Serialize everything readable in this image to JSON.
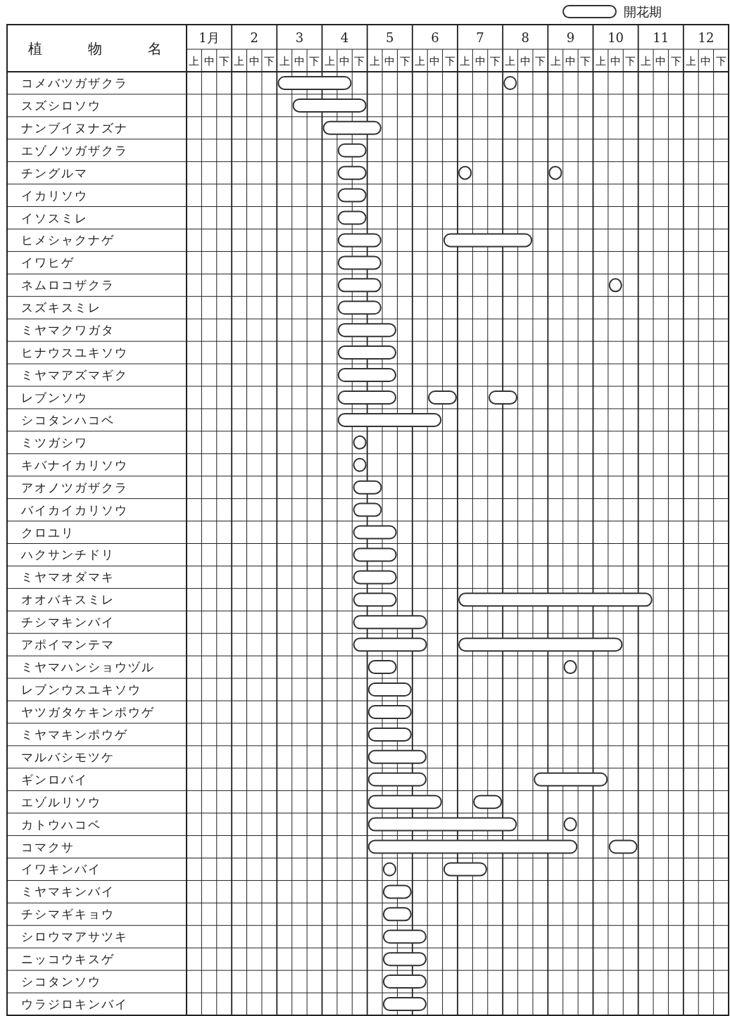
{
  "chart_data": {
    "type": "bar",
    "orientation": "horizontal",
    "ylabel": "植物名",
    "legend": "top right",
    "grid": true,
    "categories": [
      "コメバツガザクラ",
      "スズシロソウ",
      "ナンブイヌナズナ",
      "エゾノツガザクラ",
      "チングルマ",
      "イカリソウ",
      "イソスミレ",
      "ヒメシャクナゲ",
      "イワヒゲ",
      "ネムロコザクラ",
      "スズキスミレ",
      "ミヤマクワガタ",
      "ヒナウスユキソウ",
      "ミヤマアズマギク",
      "レブンソウ",
      "シコタンハコベ",
      "ミツガシワ",
      "キバナイカリソウ",
      "アオノツガザクラ",
      "バイカイカリソウ",
      "クロユリ",
      "ハクサンチドリ",
      "ミヤマオダマキ",
      "オオバキスミレ",
      "チシマキンバイ",
      "アポイマンテマ",
      "ミヤマハンショウヅル",
      "レブンウスユキソウ",
      "ヤツガタケキンポウゲ",
      "ミヤマキンポウゲ",
      "マルバシモツケ",
      "ギンロバイ",
      "エゾルリソウ",
      "カトウハコベ",
      "コマクサ",
      "イワキンバイ",
      "ミヤマキンバイ",
      "チシマギキョウ",
      "シロウマアサツキ",
      "ニッコウキスゲ",
      "シコタンソウ",
      "ウラジロキンバイ"
    ],
    "xlim": [
      0.5,
      12.5
    ],
    "xticks": [
      {
        "value": 1,
        "label": "1月"
      },
      2,
      3,
      4,
      5,
      6,
      7,
      8,
      9,
      10,
      11,
      12
    ],
    "annotations": [
      "上",
      "中",
      "下",
      "上",
      "中",
      "下",
      "上",
      "中",
      "下",
      "上",
      "中",
      "下",
      "上",
      "中",
      "下",
      "上",
      "中",
      "下",
      "上",
      "中",
      "下",
      "上",
      "中",
      "下",
      "上",
      "中",
      "下",
      "上",
      "中",
      "下",
      "上",
      "中",
      "下",
      "上",
      "中",
      "下"
    ],
    "series": [
      {
        "name": "開花期",
        "color": "#ffffff",
        "base": [
          2.5,
          2.83,
          3.5,
          3.83,
          3.83,
          3.83,
          3.83,
          3.83,
          3.83,
          3.83,
          3.83,
          3.83,
          3.83,
          3.83,
          3.83,
          3.83,
          4.17,
          4.17,
          4.17,
          4.17,
          4.17,
          4.17,
          4.17,
          4.17,
          4.17,
          4.17,
          4.5,
          4.5,
          4.5,
          4.5,
          4.5,
          4.5,
          4.5,
          4.5,
          4.5,
          4.83,
          4.83,
          4.83,
          4.83,
          4.83,
          4.83,
          4.83
        ],
        "values": [
          1.67,
          1.67,
          1.33,
          0.67,
          0.67,
          0.67,
          0.67,
          1,
          1,
          1,
          1,
          1.33,
          1.33,
          1.33,
          1.33,
          2.33,
          0.33,
          0.33,
          0.67,
          0.67,
          1,
          1,
          1,
          1,
          1.67,
          1.67,
          0.67,
          1,
          1,
          1,
          1.33,
          1.33,
          1.67,
          3.33,
          4.67,
          0.33,
          0.67,
          0.67,
          1,
          1,
          1,
          1
        ]
      },
      {
        "color": "#ffffff",
        "base": [
          7.5,
          null,
          null,
          null,
          6.5,
          null,
          null,
          6.17,
          null,
          9.83,
          null,
          null,
          null,
          null,
          5.83,
          null,
          null,
          null,
          null,
          null,
          null,
          null,
          null,
          6.5,
          null,
          6.5,
          8.83,
          null,
          null,
          null,
          null,
          8.17,
          6.83,
          8.83,
          9.83,
          6.17,
          null,
          null,
          null,
          null,
          null,
          null
        ],
        "values": [
          0.33,
          null,
          null,
          null,
          0.33,
          null,
          null,
          2,
          null,
          0.33,
          null,
          null,
          null,
          null,
          0.67,
          null,
          null,
          null,
          null,
          null,
          null,
          null,
          null,
          4.33,
          null,
          3.67,
          0.33,
          null,
          null,
          null,
          null,
          1.67,
          0.67,
          0.33,
          0.67,
          1,
          null,
          null,
          null,
          null,
          null,
          null
        ]
      },
      {
        "color": "#ffffff",
        "base": [
          null,
          null,
          null,
          null,
          8.5,
          null,
          null,
          null,
          null,
          null,
          null,
          null,
          null,
          null,
          7.17,
          null,
          null,
          null,
          null,
          null,
          null,
          null,
          null,
          null,
          null,
          null,
          null,
          null,
          null,
          null,
          null,
          null,
          null,
          null,
          null,
          null,
          null,
          null,
          null,
          null,
          null,
          null
        ],
        "values": [
          null,
          null,
          null,
          null,
          0.33,
          null,
          null,
          null,
          null,
          null,
          null,
          null,
          null,
          null,
          0.67,
          null,
          null,
          null,
          null,
          null,
          null,
          null,
          null,
          null,
          null,
          null,
          null,
          null,
          null,
          null,
          null,
          null,
          null,
          null,
          null,
          null,
          null,
          null,
          null,
          null,
          null,
          null
        ]
      }
    ]
  }
}
